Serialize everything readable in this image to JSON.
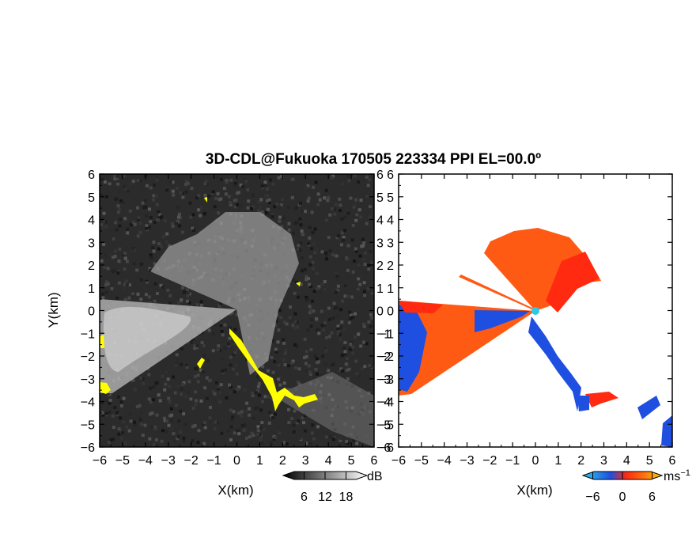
{
  "chart_data": [
    {
      "type": "heatmap",
      "panel": "reflectivity",
      "title": "3D-CDL@Fukuoka 170505 223334 PPI EL=00.0º",
      "xlabel": "X(km)",
      "ylabel": "Y(km)",
      "xlim": [
        -6,
        6
      ],
      "ylim": [
        -6,
        6
      ],
      "x_ticks": [
        "−6",
        "−5",
        "−4",
        "−3",
        "−2",
        "−1",
        "0",
        "1",
        "2",
        "3",
        "4",
        "5",
        "6"
      ],
      "y_ticks": [
        "6",
        "5",
        "4",
        "3",
        "2",
        "1",
        "0",
        "−1",
        "−2",
        "−3",
        "−4",
        "−5",
        "−6"
      ],
      "colorbar": {
        "unit": "dB",
        "ticks": [
          "6",
          "12",
          "18"
        ],
        "range": [
          0,
          24
        ]
      },
      "colors": {
        "background": "#2b2b2b",
        "highlight": "#ffff00",
        "echo": "#c8c8c8"
      }
    },
    {
      "type": "heatmap",
      "panel": "doppler_velocity",
      "xlabel": "X(km)",
      "xlim": [
        -6,
        6
      ],
      "ylim": [
        -6,
        6
      ],
      "x_ticks": [
        "−6",
        "−5",
        "−4",
        "−3",
        "−2",
        "−1",
        "0",
        "1",
        "2",
        "3",
        "4",
        "5",
        "6"
      ],
      "y_ticks": [
        "6",
        "5",
        "4",
        "3",
        "2",
        "1",
        "0",
        "−1",
        "−2",
        "−3",
        "−4",
        "−5",
        "−6"
      ],
      "colorbar": {
        "unit": "ms",
        "unit_exp": "−1",
        "ticks": [
          "−6",
          "0",
          "6"
        ],
        "range": [
          -8,
          8
        ]
      },
      "colors": {
        "approach": "#1e4fe0",
        "recede": "#ff5a14",
        "zero": "#2ec8e8"
      }
    }
  ]
}
